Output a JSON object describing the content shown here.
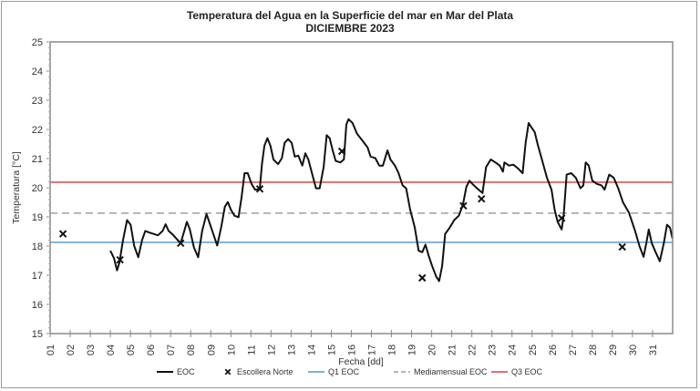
{
  "chart_data": {
    "type": "line",
    "title": "Temperatura del Agua en la Superficie del mar en Mar del Plata",
    "subtitle": "DICIEMBRE  2023",
    "xlabel": "Fecha [dd]",
    "ylabel": "Temperatura [°C]",
    "xlim": [
      1,
      32
    ],
    "ylim": [
      15,
      25
    ],
    "x_tick_labels": [
      "01",
      "02",
      "03",
      "04",
      "05",
      "06",
      "07",
      "08",
      "09",
      "10",
      "11",
      "12",
      "13",
      "14",
      "15",
      "16",
      "17",
      "18",
      "19",
      "20",
      "21",
      "22",
      "23",
      "24",
      "25",
      "26",
      "27",
      "28",
      "29",
      "30",
      "31"
    ],
    "y_ticks": [
      15,
      16,
      17,
      18,
      19,
      20,
      21,
      22,
      23,
      24,
      25
    ],
    "grid": false,
    "legend_position": "bottom",
    "series": [
      {
        "name": "EOC",
        "kind": "line",
        "color": "#111111",
        "x": [
          4.0,
          4.18,
          4.33,
          4.45,
          4.63,
          4.83,
          5.01,
          5.19,
          5.39,
          5.58,
          5.74,
          5.92,
          6.14,
          6.37,
          6.6,
          6.75,
          6.9,
          7.1,
          7.28,
          7.5,
          7.66,
          7.81,
          7.96,
          8.16,
          8.37,
          8.57,
          8.79,
          9.02,
          9.32,
          9.52,
          9.7,
          9.85,
          10.0,
          10.18,
          10.38,
          10.53,
          10.68,
          10.84,
          11.03,
          11.21,
          11.44,
          11.55,
          11.67,
          11.82,
          11.97,
          12.12,
          12.35,
          12.54,
          12.68,
          12.85,
          13.03,
          13.18,
          13.36,
          13.56,
          13.71,
          13.86,
          14.06,
          14.24,
          14.42,
          14.62,
          14.77,
          14.92,
          15.07,
          15.22,
          15.45,
          15.63,
          15.75,
          15.86,
          16.06,
          16.28,
          16.58,
          16.81,
          16.96,
          17.19,
          17.39,
          17.57,
          17.8,
          17.95,
          18.17,
          18.35,
          18.55,
          18.73,
          18.93,
          19.16,
          19.35,
          19.53,
          19.69,
          19.84,
          20.02,
          20.22,
          20.37,
          20.52,
          20.67,
          20.9,
          21.12,
          21.35,
          21.55,
          21.73,
          21.88,
          22.03,
          22.26,
          22.53,
          22.71,
          22.94,
          23.17,
          23.39,
          23.55,
          23.62,
          23.85,
          24.07,
          24.3,
          24.53,
          24.68,
          24.83,
          24.98,
          25.13,
          25.28,
          25.51,
          25.74,
          25.97,
          26.12,
          26.27,
          26.47,
          26.57,
          26.72,
          26.95,
          27.18,
          27.41,
          27.55,
          27.67,
          27.82,
          28.0,
          28.23,
          28.46,
          28.61,
          28.84,
          29.07,
          29.29,
          29.52,
          29.82,
          30.13,
          30.35,
          30.55,
          30.69,
          30.81,
          30.96,
          31.15,
          31.36,
          31.56,
          31.72,
          31.87,
          31.99
        ],
        "y": [
          17.84,
          17.58,
          17.17,
          17.43,
          18.21,
          18.89,
          18.73,
          18.0,
          17.62,
          18.21,
          18.52,
          18.47,
          18.42,
          18.37,
          18.52,
          18.75,
          18.52,
          18.4,
          18.26,
          18.1,
          18.47,
          18.83,
          18.57,
          17.95,
          17.62,
          18.52,
          19.1,
          18.63,
          18.02,
          18.65,
          19.35,
          19.51,
          19.25,
          19.04,
          18.99,
          19.67,
          20.5,
          20.5,
          20.13,
          19.93,
          19.96,
          20.81,
          21.44,
          21.7,
          21.44,
          20.97,
          20.81,
          21.02,
          21.54,
          21.67,
          21.54,
          21.07,
          21.1,
          20.76,
          21.18,
          20.97,
          20.45,
          19.98,
          19.98,
          20.71,
          21.8,
          21.7,
          21.28,
          20.92,
          20.87,
          20.97,
          22.17,
          22.35,
          22.22,
          21.85,
          21.59,
          21.38,
          21.07,
          21.02,
          20.76,
          20.76,
          21.28,
          20.97,
          20.76,
          20.5,
          20.08,
          19.98,
          19.25,
          18.63,
          17.84,
          17.79,
          18.05,
          17.69,
          17.32,
          16.96,
          16.8,
          17.32,
          18.42,
          18.63,
          18.89,
          19.04,
          19.41,
          20.03,
          20.24,
          20.13,
          19.98,
          19.82,
          20.71,
          20.97,
          20.87,
          20.76,
          20.55,
          20.87,
          20.76,
          20.79,
          20.66,
          20.5,
          21.54,
          22.22,
          22.06,
          21.91,
          21.49,
          20.92,
          20.34,
          19.93,
          19.25,
          18.83,
          18.57,
          19.04,
          20.45,
          20.5,
          20.34,
          19.98,
          20.08,
          20.87,
          20.76,
          20.24,
          20.13,
          20.08,
          19.93,
          20.45,
          20.34,
          19.98,
          19.51,
          19.15,
          18.52,
          18.0,
          17.63,
          18.1,
          18.57,
          18.1,
          17.79,
          17.48,
          18.1,
          18.73,
          18.63,
          18.26
        ]
      },
      {
        "name": "Escollera Norte",
        "kind": "scatter",
        "marker": "x",
        "color": "#111111",
        "x": [
          1.64,
          4.48,
          7.5,
          11.44,
          15.53,
          19.53,
          21.58,
          22.48,
          26.47,
          29.49
        ],
        "y": [
          18.42,
          17.53,
          18.1,
          19.96,
          21.25,
          16.91,
          19.38,
          19.62,
          18.96,
          17.97
        ]
      },
      {
        "name": "Q1 EOC",
        "kind": "hline",
        "color": "#7fb2d4",
        "value": 18.13
      },
      {
        "name": "Mediamensual EOC",
        "kind": "hline-dashed",
        "color": "#8c8c8c",
        "value": 19.13
      },
      {
        "name": "Q3  EOC",
        "kind": "hline",
        "color": "#e07070",
        "value": 20.19
      }
    ]
  }
}
